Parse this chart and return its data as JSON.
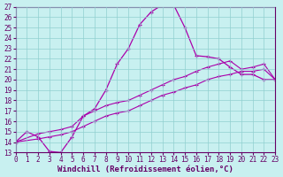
{
  "xlabel": "Windchill (Refroidissement éolien,°C)",
  "ylim": [
    13,
    27
  ],
  "xlim": [
    0,
    23
  ],
  "yticks": [
    13,
    14,
    15,
    16,
    17,
    18,
    19,
    20,
    21,
    22,
    23,
    24,
    25,
    26,
    27
  ],
  "xticks": [
    0,
    1,
    2,
    3,
    4,
    5,
    6,
    7,
    8,
    9,
    10,
    11,
    12,
    13,
    14,
    15,
    16,
    17,
    18,
    19,
    20,
    21,
    22,
    23
  ],
  "bg_color": "#c8f0f0",
  "line_color": "#aa00aa",
  "grid_color": "#90d0d0",
  "line1_x": [
    0,
    1,
    2,
    3,
    4,
    5,
    6,
    7,
    8,
    9,
    10,
    11,
    12,
    13,
    14,
    15,
    16,
    17,
    18,
    19,
    20,
    21,
    22,
    23
  ],
  "line1_y": [
    14.0,
    15.0,
    14.5,
    13.1,
    13.0,
    14.5,
    16.5,
    17.2,
    19.0,
    21.5,
    23.0,
    25.3,
    26.5,
    27.2,
    27.2,
    25.0,
    22.3,
    22.2,
    22.0,
    21.2,
    20.5,
    20.5,
    20.0,
    20.0
  ],
  "line2_x": [
    0,
    2,
    3,
    4,
    5,
    6,
    7,
    8,
    9,
    10,
    11,
    12,
    13,
    14,
    15,
    16,
    17,
    18,
    19,
    20,
    21,
    22,
    23
  ],
  "line2_y": [
    14.0,
    14.8,
    15.0,
    15.2,
    15.5,
    16.5,
    17.0,
    17.5,
    17.8,
    18.0,
    18.5,
    19.0,
    19.5,
    20.0,
    20.3,
    20.8,
    21.2,
    21.5,
    21.8,
    21.0,
    21.2,
    21.5,
    20.0
  ],
  "line3_x": [
    0,
    2,
    3,
    4,
    5,
    6,
    7,
    8,
    9,
    10,
    11,
    12,
    13,
    14,
    15,
    16,
    17,
    18,
    19,
    20,
    21,
    22,
    23
  ],
  "line3_y": [
    14.0,
    14.3,
    14.5,
    14.7,
    15.0,
    15.5,
    16.0,
    16.5,
    16.8,
    17.0,
    17.5,
    18.0,
    18.5,
    18.8,
    19.2,
    19.5,
    20.0,
    20.3,
    20.5,
    20.8,
    20.8,
    21.0,
    20.0
  ],
  "label_fontsize": 6.5,
  "tick_fontsize": 5.5
}
